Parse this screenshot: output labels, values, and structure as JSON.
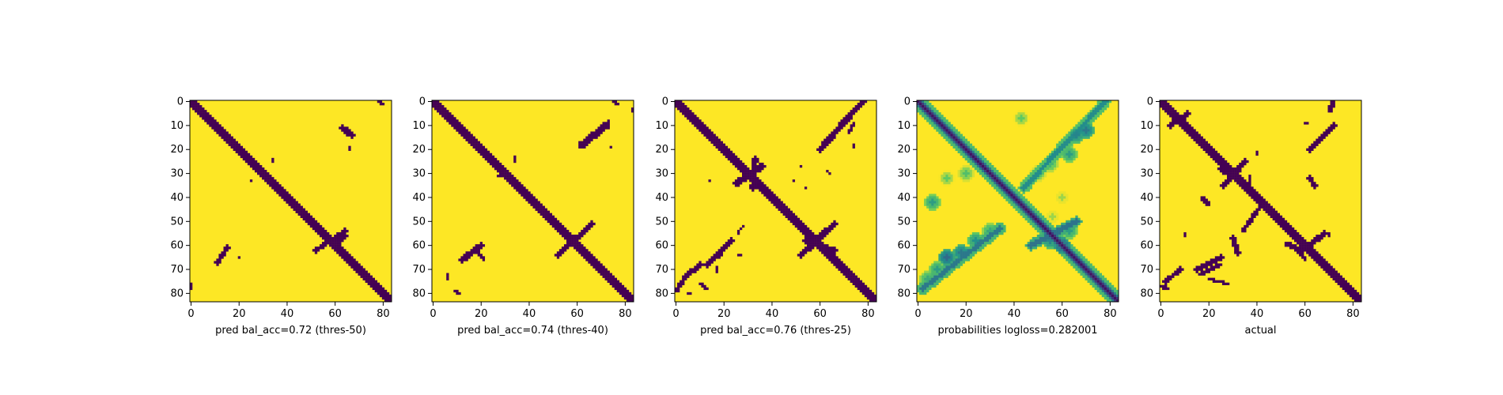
{
  "figure": {
    "panel_count": 5
  },
  "chart_data": [
    {
      "type": "heatmap",
      "title": "",
      "xlabel": "pred bal_acc=0.72 (thres-50)",
      "ylabel": "",
      "matrix_size": 84,
      "x_ticks": [
        0,
        20,
        40,
        60,
        80
      ],
      "y_ticks": [
        0,
        10,
        20,
        30,
        40,
        50,
        60,
        70,
        80
      ],
      "value_range": [
        0,
        1
      ],
      "colormap": "viridis",
      "grid": false,
      "description_values": {
        "background": 1,
        "contact": 0
      },
      "contacts": {
        "diagonal_width": 2,
        "segments": [
          {
            "r0": 0,
            "c0": 78,
            "r1": 1,
            "c1": 80,
            "w": 0.8
          },
          {
            "r0": 11,
            "c0": 63,
            "r1": 14,
            "c1": 67,
            "w": 1.2
          },
          {
            "r0": 19,
            "c0": 66,
            "r1": 20,
            "c1": 66,
            "w": 0.5
          },
          {
            "r0": 24,
            "c0": 34,
            "r1": 25,
            "c1": 34,
            "w": 0.5
          },
          {
            "r0": 33,
            "c0": 25,
            "r1": 33,
            "c1": 25,
            "w": 0.5
          },
          {
            "r0": 54,
            "c0": 64,
            "r1": 62,
            "c1": 52,
            "w": 1.0
          },
          {
            "r0": 56,
            "c0": 64,
            "r1": 60,
            "c1": 60,
            "w": 1.2
          },
          {
            "r0": 61,
            "c0": 15,
            "r1": 67,
            "c1": 11,
            "w": 1.0
          },
          {
            "r0": 65,
            "c0": 20,
            "r1": 65,
            "c1": 20,
            "w": 0.5
          },
          {
            "r0": 76,
            "c0": 0,
            "r1": 78,
            "c1": 0,
            "w": 0.8
          }
        ]
      }
    },
    {
      "type": "heatmap",
      "title": "",
      "xlabel": "pred bal_acc=0.74 (thres-40)",
      "ylabel": "",
      "matrix_size": 84,
      "x_ticks": [
        0,
        20,
        40,
        60,
        80
      ],
      "y_ticks": [
        0,
        10,
        20,
        30,
        40,
        50,
        60,
        70,
        80
      ],
      "value_range": [
        0,
        1
      ],
      "colormap": "viridis",
      "grid": false,
      "description_values": {
        "background": 1,
        "contact": 0
      },
      "contacts": {
        "diagonal_width": 2,
        "segments": [
          {
            "r0": 0,
            "c0": 75,
            "r1": 1,
            "c1": 77,
            "w": 0.8
          },
          {
            "r0": 3,
            "c0": 83,
            "r1": 4,
            "c1": 83,
            "w": 0.5
          },
          {
            "r0": 10,
            "c0": 72,
            "r1": 18,
            "c1": 62,
            "w": 1.5
          },
          {
            "r0": 8,
            "c0": 73,
            "r1": 11,
            "c1": 73,
            "w": 0.6
          },
          {
            "r0": 19,
            "c0": 74,
            "r1": 19,
            "c1": 74,
            "w": 0.5
          },
          {
            "r0": 23,
            "c0": 34,
            "r1": 25,
            "c1": 34,
            "w": 0.6
          },
          {
            "r0": 31,
            "c0": 27,
            "r1": 31,
            "c1": 29,
            "w": 0.5
          },
          {
            "r0": 51,
            "c0": 66,
            "r1": 64,
            "c1": 52,
            "w": 1.1
          },
          {
            "r0": 60,
            "c0": 20,
            "r1": 66,
            "c1": 12,
            "w": 1.2
          },
          {
            "r0": 63,
            "c0": 19,
            "r1": 66,
            "c1": 21,
            "w": 0.6
          },
          {
            "r0": 72,
            "c0": 6,
            "r1": 74,
            "c1": 6,
            "w": 0.6
          },
          {
            "r0": 79,
            "c0": 9,
            "r1": 80,
            "c1": 11,
            "w": 0.6
          }
        ]
      }
    },
    {
      "type": "heatmap",
      "title": "",
      "xlabel": "pred bal_acc=0.76 (thres-25)",
      "ylabel": "",
      "matrix_size": 84,
      "x_ticks": [
        0,
        20,
        40,
        60,
        80
      ],
      "y_ticks": [
        0,
        10,
        20,
        30,
        40,
        50,
        60,
        70,
        80
      ],
      "value_range": [
        0,
        1
      ],
      "colormap": "viridis",
      "grid": false,
      "description_values": {
        "background": 1,
        "contact": 0
      },
      "contacts": {
        "diagonal_width": 2.5,
        "segments": [
          {
            "r0": 0,
            "c0": 78,
            "r1": 4,
            "c1": 74,
            "w": 1.0
          },
          {
            "r0": 4,
            "c0": 74,
            "r1": 20,
            "c1": 60,
            "w": 1.3
          },
          {
            "r0": 9,
            "c0": 74,
            "r1": 13,
            "c1": 72,
            "w": 0.8
          },
          {
            "r0": 18,
            "c0": 74,
            "r1": 19,
            "c1": 74,
            "w": 0.5
          },
          {
            "r0": 27,
            "c0": 36,
            "r1": 34,
            "c1": 25,
            "w": 1.4
          },
          {
            "r0": 24,
            "c0": 33,
            "r1": 36,
            "c1": 32,
            "w": 1.1
          },
          {
            "r0": 27,
            "c0": 52,
            "r1": 27,
            "c1": 52,
            "w": 0.6
          },
          {
            "r0": 29,
            "c0": 63,
            "r1": 30,
            "c1": 64,
            "w": 0.6
          },
          {
            "r0": 33,
            "c0": 14,
            "r1": 33,
            "c1": 14,
            "w": 0.5
          },
          {
            "r0": 33,
            "c0": 49,
            "r1": 33,
            "c1": 49,
            "w": 0.5
          },
          {
            "r0": 36,
            "c0": 54,
            "r1": 36,
            "c1": 54,
            "w": 0.5
          },
          {
            "r0": 42,
            "c0": 44,
            "r1": 42,
            "c1": 44,
            "w": 0.5
          },
          {
            "r0": 51,
            "c0": 66,
            "r1": 64,
            "c1": 52,
            "w": 1.3
          },
          {
            "r0": 58,
            "c0": 54,
            "r1": 62,
            "c1": 66,
            "w": 1.1
          },
          {
            "r0": 52,
            "c0": 28,
            "r1": 54,
            "c1": 26,
            "w": 0.6
          },
          {
            "r0": 55,
            "c0": 26,
            "r1": 55,
            "c1": 26,
            "w": 0.5
          },
          {
            "r0": 58,
            "c0": 23,
            "r1": 68,
            "c1": 13,
            "w": 1.3
          },
          {
            "r0": 60,
            "c0": 20,
            "r1": 65,
            "c1": 18,
            "w": 0.9
          },
          {
            "r0": 68,
            "c0": 10,
            "r1": 73,
            "c1": 4,
            "w": 1.1
          },
          {
            "r0": 73,
            "c0": 4,
            "r1": 79,
            "c1": 0,
            "w": 0.9
          },
          {
            "r0": 64,
            "c0": 26,
            "r1": 64,
            "c1": 27,
            "w": 0.5
          },
          {
            "r0": 69,
            "c0": 17,
            "r1": 71,
            "c1": 17,
            "w": 0.5
          },
          {
            "r0": 76,
            "c0": 10,
            "r1": 78,
            "c1": 13,
            "w": 0.6
          },
          {
            "r0": 80,
            "c0": 5,
            "r1": 80,
            "c1": 6,
            "w": 0.5
          }
        ]
      }
    },
    {
      "type": "heatmap",
      "title": "",
      "xlabel": "probabilities logloss=0.282001",
      "ylabel": "",
      "matrix_size": 84,
      "x_ticks": [
        0,
        20,
        40,
        60,
        80
      ],
      "y_ticks": [
        0,
        10,
        20,
        30,
        40,
        50,
        60,
        70,
        80
      ],
      "value_range": [
        0,
        1
      ],
      "colormap": "viridis",
      "grid": false,
      "description_values": {
        "background": 1,
        "diagonal": 0
      },
      "probability_blobs": [
        {
          "r": 14,
          "c": 66,
          "v": 0.45
        },
        {
          "r": 12,
          "c": 70,
          "v": 0.4
        },
        {
          "r": 22,
          "c": 63,
          "v": 0.55
        },
        {
          "r": 26,
          "c": 55,
          "v": 0.65
        },
        {
          "r": 30,
          "c": 50,
          "v": 0.7
        },
        {
          "r": 7,
          "c": 43,
          "v": 0.75
        },
        {
          "r": 32,
          "c": 12,
          "v": 0.75
        },
        {
          "r": 30,
          "c": 20,
          "v": 0.7
        },
        {
          "r": 42,
          "c": 6,
          "v": 0.55
        },
        {
          "r": 54,
          "c": 30,
          "v": 0.6
        },
        {
          "r": 58,
          "c": 24,
          "v": 0.5
        },
        {
          "r": 63,
          "c": 18,
          "v": 0.4
        },
        {
          "r": 65,
          "c": 12,
          "v": 0.35
        },
        {
          "r": 70,
          "c": 8,
          "v": 0.55
        },
        {
          "r": 74,
          "c": 4,
          "v": 0.6
        },
        {
          "r": 58,
          "c": 55,
          "v": 0.45
        },
        {
          "r": 60,
          "c": 60,
          "v": 0.3
        },
        {
          "r": 54,
          "c": 63,
          "v": 0.55
        },
        {
          "r": 48,
          "c": 56,
          "v": 0.85
        },
        {
          "r": 40,
          "c": 60,
          "v": 0.85
        }
      ]
    },
    {
      "type": "heatmap",
      "title": "",
      "xlabel": "actual",
      "ylabel": "",
      "matrix_size": 84,
      "x_ticks": [
        0,
        20,
        40,
        60,
        80
      ],
      "y_ticks": [
        0,
        10,
        20,
        30,
        40,
        50,
        60,
        70,
        80
      ],
      "value_range": [
        0,
        1
      ],
      "colormap": "viridis",
      "grid": false,
      "description_values": {
        "background": 1,
        "contact": 0
      },
      "contacts": {
        "diagonal_width": 2,
        "segments": [
          {
            "r0": 0,
            "c0": 72,
            "r1": 4,
            "c1": 70,
            "w": 0.9
          },
          {
            "r0": 6,
            "c0": 5,
            "r1": 12,
            "c1": 11,
            "w": 1.2
          },
          {
            "r0": 5,
            "c0": 11,
            "r1": 10,
            "c1": 4,
            "w": 1.1
          },
          {
            "r0": 10,
            "c0": 72,
            "r1": 20,
            "c1": 62,
            "w": 1.0
          },
          {
            "r0": 9,
            "c0": 60,
            "r1": 9,
            "c1": 61,
            "w": 0.5
          },
          {
            "r0": 21,
            "c0": 40,
            "r1": 22,
            "c1": 40,
            "w": 0.5
          },
          {
            "r0": 28,
            "c0": 25,
            "r1": 34,
            "c1": 35,
            "w": 1.4
          },
          {
            "r0": 25,
            "c0": 35,
            "r1": 35,
            "c1": 26,
            "w": 1.2
          },
          {
            "r0": 31,
            "c0": 37,
            "r1": 35,
            "c1": 37,
            "w": 0.5
          },
          {
            "r0": 32,
            "c0": 62,
            "r1": 35,
            "c1": 64,
            "w": 1.0
          },
          {
            "r0": 40,
            "c0": 17,
            "r1": 43,
            "c1": 20,
            "w": 0.8
          },
          {
            "r0": 43,
            "c0": 42,
            "r1": 54,
            "c1": 34,
            "w": 0.9
          },
          {
            "r0": 47,
            "c0": 40,
            "r1": 50,
            "c1": 36,
            "w": 0.6
          },
          {
            "r0": 55,
            "c0": 10,
            "r1": 56,
            "c1": 10,
            "w": 0.5
          },
          {
            "r0": 57,
            "c0": 30,
            "r1": 63,
            "c1": 32,
            "w": 1.0
          },
          {
            "r0": 55,
            "c0": 68,
            "r1": 63,
            "c1": 58,
            "w": 1.1
          },
          {
            "r0": 59,
            "c0": 52,
            "r1": 62,
            "c1": 58,
            "w": 0.9
          },
          {
            "r0": 60,
            "c0": 55,
            "r1": 66,
            "c1": 60,
            "w": 0.7
          },
          {
            "r0": 55,
            "c0": 70,
            "r1": 56,
            "c1": 70,
            "w": 0.5
          },
          {
            "r0": 65,
            "c0": 25,
            "r1": 70,
            "c1": 15,
            "w": 1.1
          },
          {
            "r0": 68,
            "c0": 25,
            "r1": 72,
            "c1": 16,
            "w": 0.9
          },
          {
            "r0": 70,
            "c0": 8,
            "r1": 75,
            "c1": 2,
            "w": 1.0
          },
          {
            "r0": 74,
            "c0": 20,
            "r1": 76,
            "c1": 28,
            "w": 0.6
          },
          {
            "r0": 77,
            "c0": 0,
            "r1": 78,
            "c1": 3,
            "w": 0.8
          }
        ]
      }
    }
  ]
}
